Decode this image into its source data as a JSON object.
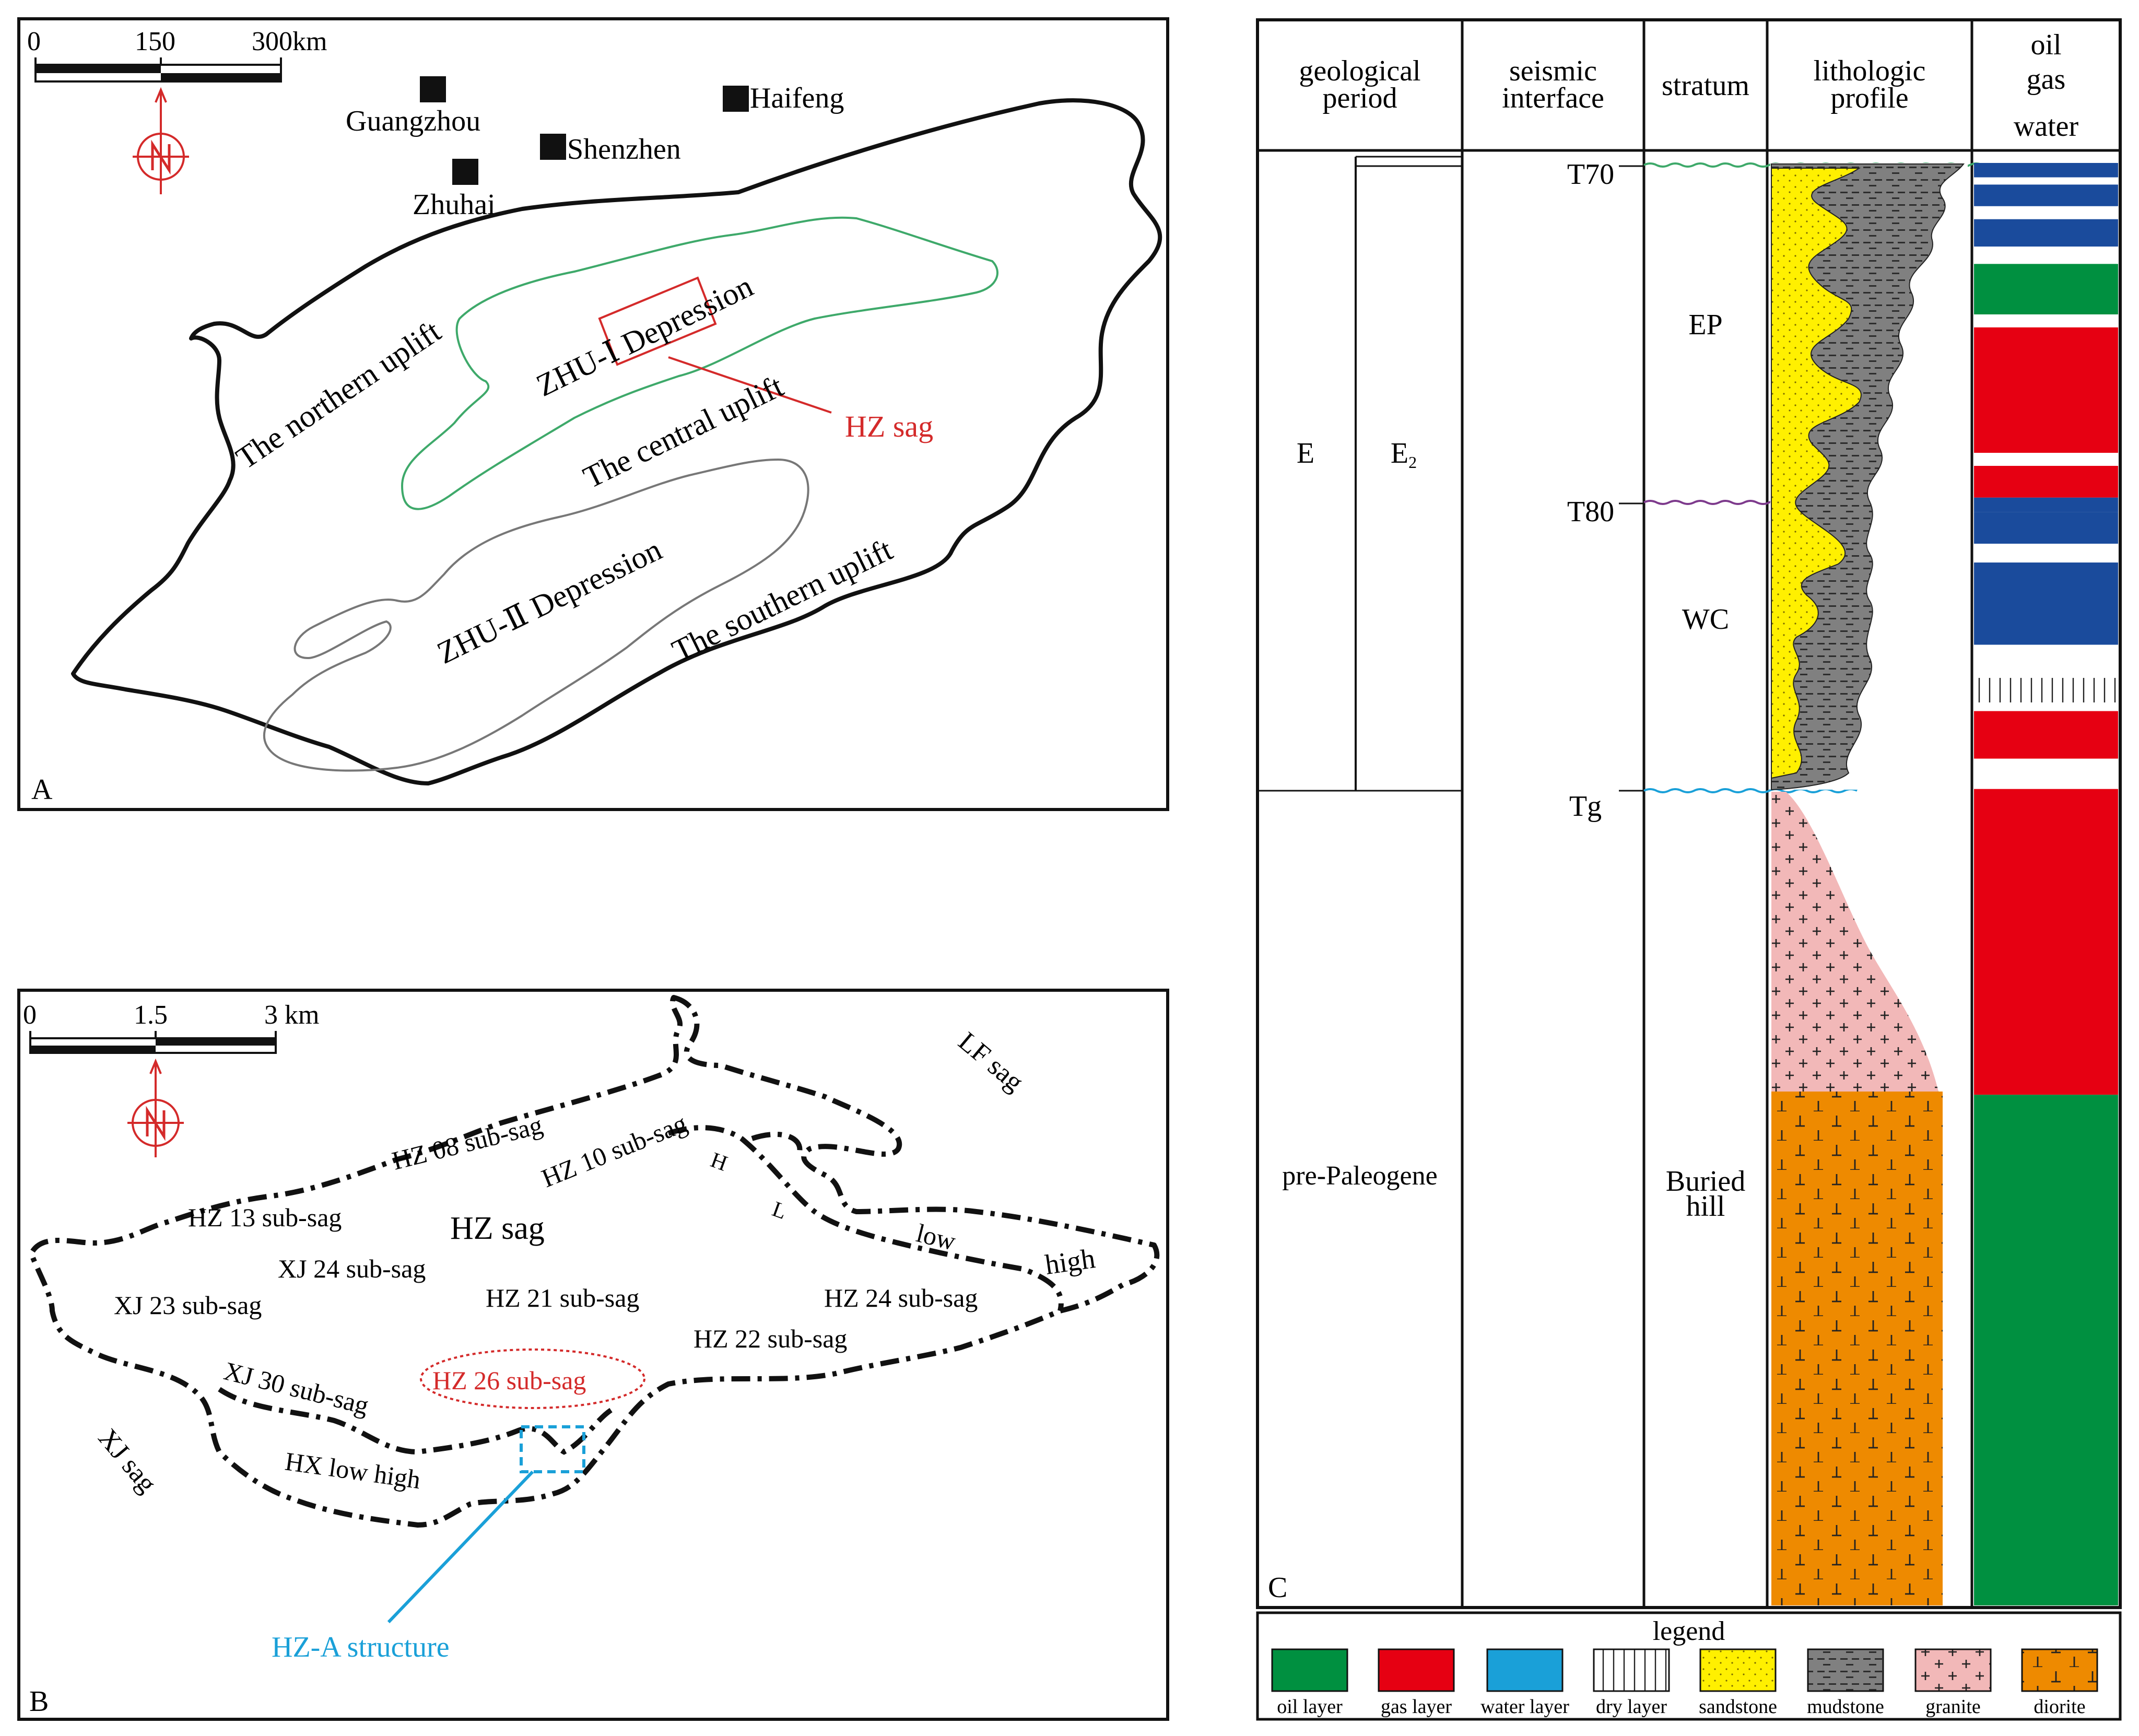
{
  "panel_a": {
    "label": "A",
    "scale": {
      "t0": "0",
      "t1": "150",
      "t2": "300km"
    },
    "cities": {
      "guangzhou": "Guangzhou",
      "shenzhen": "Shenzhen",
      "zhuhai": "Zhuhai",
      "haifeng": "Haifeng"
    },
    "regions": {
      "northern_uplift": "The northern uplift",
      "zhu1": "ZHU-Ⅰ Depression",
      "central_uplift": "The central uplift",
      "zhu2": "ZHU-Ⅱ Depression",
      "southern_uplift": "The southern uplift"
    },
    "hz_sag": "HZ sag"
  },
  "panel_b": {
    "label": "B",
    "scale": {
      "t0": "0",
      "t1": "1.5",
      "t2": "3 km"
    },
    "lf_sag": "LF sag",
    "xj_sag": "XJ sag",
    "hz_sag": "HZ sag",
    "subsags": {
      "hz08": "HZ 08 sub-sag",
      "hz10": "HZ 10 sub-sag",
      "hz13": "HZ 13 sub-sag",
      "xj24": "XJ 24 sub-sag",
      "xj23": "XJ 23 sub-sag",
      "hz21": "HZ 21 sub-sag",
      "hz24": "HZ 24 sub-sag",
      "hz22": "HZ 22 sub-sag",
      "xj30": "XJ 30 sub-sag",
      "hz26": "HZ 26 sub-sag"
    },
    "h": "H",
    "l": "L",
    "low": "low",
    "high": "high",
    "hx": "HX low high",
    "hza": "HZ-A structure"
  },
  "panel_c": {
    "label": "C",
    "headers": {
      "geo_1": "geological",
      "geo_2": "period",
      "seis_1": "seismic",
      "seis_2": "interface",
      "stratum": "stratum",
      "lith_1": "lithologic",
      "lith_2": "profile",
      "ogw_1": "oil",
      "ogw_2": "gas",
      "ogw_3": "water"
    },
    "period_e": "E",
    "period_e2": "E",
    "period_e2_sub": "2",
    "period_pre": "pre-Paleogene",
    "interfaces": {
      "t70": "T70",
      "t80": "T80",
      "tg": "Tg"
    },
    "strata": {
      "ep": "EP",
      "wc": "WC",
      "bh_1": "Buried",
      "bh_2": "hill"
    },
    "oil_gas_water": [
      {
        "type": "water",
        "from": 0.0,
        "to": 0.01
      },
      {
        "type": "none",
        "from": 0.01,
        "to": 0.015
      },
      {
        "type": "water",
        "from": 0.015,
        "to": 0.03
      },
      {
        "type": "none",
        "from": 0.03,
        "to": 0.039
      },
      {
        "type": "water",
        "from": 0.039,
        "to": 0.058
      },
      {
        "type": "none",
        "from": 0.058,
        "to": 0.07
      },
      {
        "type": "oil",
        "from": 0.07,
        "to": 0.105
      },
      {
        "type": "none",
        "from": 0.105,
        "to": 0.114
      },
      {
        "type": "gas",
        "from": 0.114,
        "to": 0.201
      },
      {
        "type": "none",
        "from": 0.201,
        "to": 0.21
      },
      {
        "type": "gas",
        "from": 0.21,
        "to": 0.232
      },
      {
        "type": "water",
        "from": 0.232,
        "to": 0.242
      },
      {
        "type": "water",
        "from": 0.242,
        "to": 0.264
      },
      {
        "type": "none",
        "from": 0.264,
        "to": 0.277
      },
      {
        "type": "water",
        "from": 0.277,
        "to": 0.334
      },
      {
        "type": "none",
        "from": 0.334,
        "to": 0.357
      },
      {
        "type": "dry",
        "from": 0.357,
        "to": 0.374
      },
      {
        "type": "none",
        "from": 0.374,
        "to": 0.38
      },
      {
        "type": "gas",
        "from": 0.38,
        "to": 0.413
      },
      {
        "type": "none",
        "from": 0.413,
        "to": 0.434
      },
      {
        "type": "gas",
        "from": 0.434,
        "to": 0.646
      },
      {
        "type": "oil",
        "from": 0.646,
        "to": 1.0
      }
    ],
    "colors": {
      "oil": "#009040",
      "gas": "#e60012",
      "water": "#1a4b9c",
      "sandstone": "#fff000",
      "mudstone": "#808080",
      "granite": "#f2b8b8",
      "diorite": "#ee8a00"
    },
    "legend_title": "legend",
    "legend": {
      "oil": "oil layer",
      "gas": "gas layer",
      "water": "water layer",
      "dry": "dry layer",
      "sandstone": "sandstone",
      "mudstone": "mudstone",
      "granite": "granite",
      "diorite": "diorite"
    }
  }
}
